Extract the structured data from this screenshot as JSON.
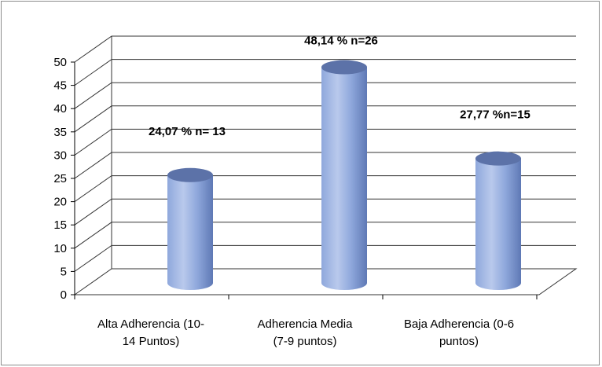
{
  "chart_data": {
    "type": "bar",
    "style": "3d-cylinder",
    "categories": [
      [
        "Alta Adherencia (10-",
        "14 Puntos)"
      ],
      [
        "Adherencia Media",
        "(7-9 puntos)"
      ],
      [
        "Baja Adherencia (0-6",
        "puntos)"
      ]
    ],
    "values": [
      24.07,
      48.14,
      27.77
    ],
    "data_labels": [
      "24,07 % n= 13",
      "48,14 % n=26",
      "27,77 %n=15"
    ],
    "y_ticks": [
      "0",
      "5",
      "10",
      "15",
      "20",
      "25",
      "30",
      "35",
      "40",
      "45",
      "50"
    ],
    "ylim": [
      0,
      50
    ],
    "grid": true,
    "legend": "none",
    "colors": {
      "bar_light": "#b9c9ec",
      "bar_mid": "#8fa8dc",
      "bar_dark": "#5f79b5",
      "top_face": "#5c72a8",
      "grid": "#333333",
      "floor": "#333333"
    }
  }
}
